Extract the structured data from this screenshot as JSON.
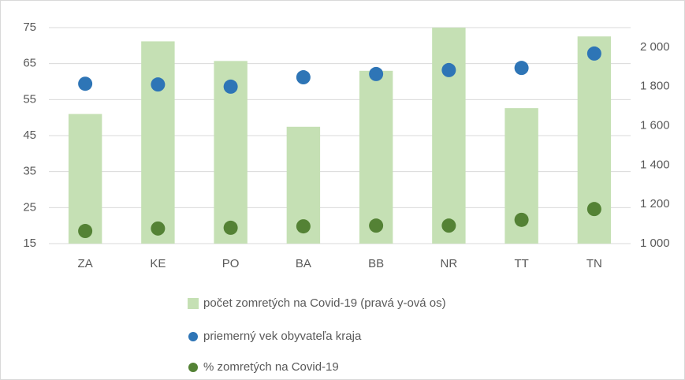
{
  "chart_data": {
    "type": "bar_scatter",
    "categories": [
      "ZA",
      "KE",
      "PO",
      "BA",
      "BB",
      "NR",
      "TT",
      "TN"
    ],
    "series": [
      {
        "name": "počet zomretých na Covid-19 (pravá y-ová os)",
        "type": "bar",
        "axis": "y2",
        "color": "#c5e0b4",
        "values": [
          1660,
          2030,
          1930,
          1595,
          1880,
          2100,
          1690,
          2055
        ]
      },
      {
        "name": "priemerný vek obyvateľa kraja",
        "type": "scatter",
        "color": "#2e75b6",
        "values": [
          59.4,
          59.2,
          58.6,
          61.2,
          62.1,
          63.2,
          63.8,
          67.8
        ]
      },
      {
        "name": "% zomretých na Covid-19",
        "type": "scatter",
        "color": "#548235",
        "values": [
          18.5,
          19.2,
          19.4,
          19.8,
          20.0,
          20.0,
          21.6,
          24.6
        ]
      }
    ],
    "ylim": [
      15,
      75
    ],
    "yticks": [
      15,
      25,
      35,
      45,
      55,
      65,
      75
    ],
    "y2lim": [
      1000,
      2100
    ],
    "y2ticks": [
      {
        "value": 1000,
        "label": "1 000"
      },
      {
        "value": 1200,
        "label": "1 200"
      },
      {
        "value": 1400,
        "label": "1 400"
      },
      {
        "value": 1600,
        "label": "1 600"
      },
      {
        "value": 1800,
        "label": "1 800"
      },
      {
        "value": 2000,
        "label": "2 000"
      }
    ],
    "grid": true,
    "legend": "bottom"
  }
}
